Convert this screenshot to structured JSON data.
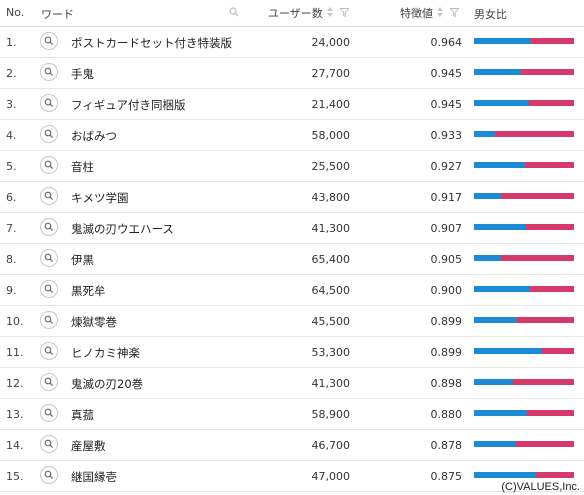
{
  "header": {
    "no": "No.",
    "word": "ワード",
    "users": "ユーザー数",
    "score": "特徴値",
    "ratio": "男女比"
  },
  "colors": {
    "male": "#1a8bd4",
    "female": "#d63a6a"
  },
  "rows": [
    {
      "no": "1.",
      "word": "ポストカードセット付き特装版",
      "users": "24,000",
      "score": "0.964",
      "male_ratio": 0.57
    },
    {
      "no": "2.",
      "word": "手鬼",
      "users": "27,700",
      "score": "0.945",
      "male_ratio": 0.47
    },
    {
      "no": "3.",
      "word": "フィギュア付き同梱版",
      "users": "21,400",
      "score": "0.945",
      "male_ratio": 0.55
    },
    {
      "no": "4.",
      "word": "おばみつ",
      "users": "58,000",
      "score": "0.933",
      "male_ratio": 0.21
    },
    {
      "no": "5.",
      "word": "音柱",
      "users": "25,500",
      "score": "0.927",
      "male_ratio": 0.51
    },
    {
      "no": "6.",
      "word": "キメツ学園",
      "users": "43,800",
      "score": "0.917",
      "male_ratio": 0.27
    },
    {
      "no": "7.",
      "word": "鬼滅の刃ウエハース",
      "users": "41,300",
      "score": "0.907",
      "male_ratio": 0.52
    },
    {
      "no": "8.",
      "word": "伊黒",
      "users": "65,400",
      "score": "0.905",
      "male_ratio": 0.27
    },
    {
      "no": "9.",
      "word": "黒死牟",
      "users": "64,500",
      "score": "0.900",
      "male_ratio": 0.56
    },
    {
      "no": "10.",
      "word": "煉獄零巻",
      "users": "45,500",
      "score": "0.899",
      "male_ratio": 0.43
    },
    {
      "no": "11.",
      "word": "ヒノカミ神楽",
      "users": "53,300",
      "score": "0.899",
      "male_ratio": 0.68
    },
    {
      "no": "12.",
      "word": "鬼滅の刃20巻",
      "users": "41,300",
      "score": "0.898",
      "male_ratio": 0.39
    },
    {
      "no": "13.",
      "word": "真菰",
      "users": "58,900",
      "score": "0.880",
      "male_ratio": 0.53
    },
    {
      "no": "14.",
      "word": "産屋敷",
      "users": "46,700",
      "score": "0.878",
      "male_ratio": 0.42
    },
    {
      "no": "15.",
      "word": "継国縁壱",
      "users": "47,000",
      "score": "0.875",
      "male_ratio": 0.62
    }
  ],
  "footer": {
    "copyright": "(C)VALUES,Inc."
  }
}
